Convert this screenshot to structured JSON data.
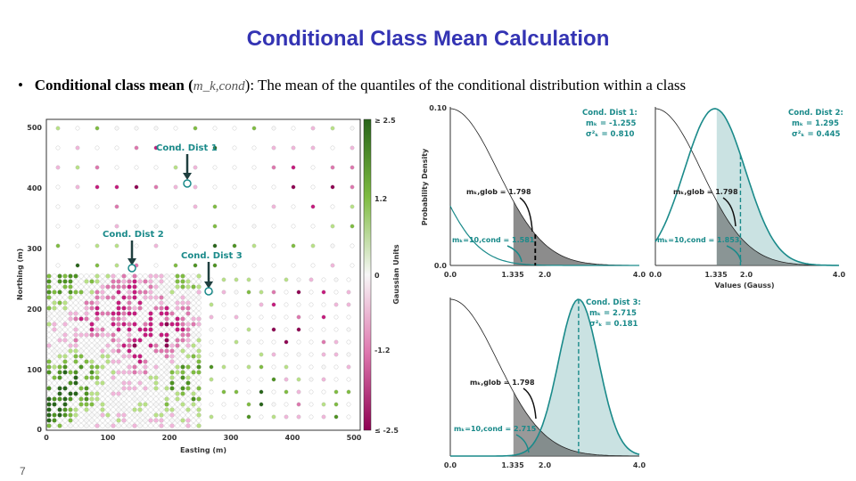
{
  "slide": {
    "title": "Conditional Class Mean Calculation",
    "bullet_marker": "•",
    "bullet_bold": "Conditional class mean (",
    "bullet_symbol": "m_k,cond",
    "bullet_rest": "): The mean of the quantiles of the conditional distribution within a class",
    "page_number": "7"
  },
  "colors": {
    "title": "#3333b3",
    "teal": "#1a8a8a",
    "pink": "#8e0152",
    "green": "#276419",
    "grey": "#555555"
  },
  "map": {
    "xlabel": "Easting (m)",
    "ylabel": "Northing (m)",
    "x_ticks": [
      "0",
      "100",
      "200",
      "300",
      "400",
      "500"
    ],
    "y_ticks": [
      "0",
      "100",
      "200",
      "300",
      "400",
      "500"
    ],
    "labels": [
      "Cond. Dist 1",
      "Cond. Dist 2",
      "Cond. Dist 3"
    ],
    "colorbar_label": "Gaussian Units",
    "colorbar_ticks": [
      "≥ 2.5",
      "1.2",
      "0",
      "-1.2",
      "≤ -2.5"
    ]
  },
  "plots": {
    "ylabel": "Probability Density",
    "xlabel": "Values (Gauss)",
    "y_top": "0.10",
    "y_bottom": "0.0",
    "x_ticks": [
      "0.0",
      "1.335",
      "2.0",
      "4.0"
    ],
    "dist1": {
      "name": "Cond. Dist 1:",
      "mean": "mₖ = -1.255",
      "var": "σ²ₖ = 0.810"
    },
    "dist2": {
      "name": "Cond. Dist 2:",
      "mean": "mₖ = 1.295",
      "var": "σ²ₖ = 0.445"
    },
    "dist3": {
      "name": "Cond. Dist 3:",
      "mean": "mₖ = 2.715",
      "var": "σ²ₖ = 0.181"
    },
    "global_label": "mₖ,glob = 1.798",
    "cond1_label": "mₖ=10,cond = 1.581",
    "cond2_label": "mₖ=10,cond = 1.853",
    "cond3_label": "mₖ=10,cond = 2.715"
  }
}
